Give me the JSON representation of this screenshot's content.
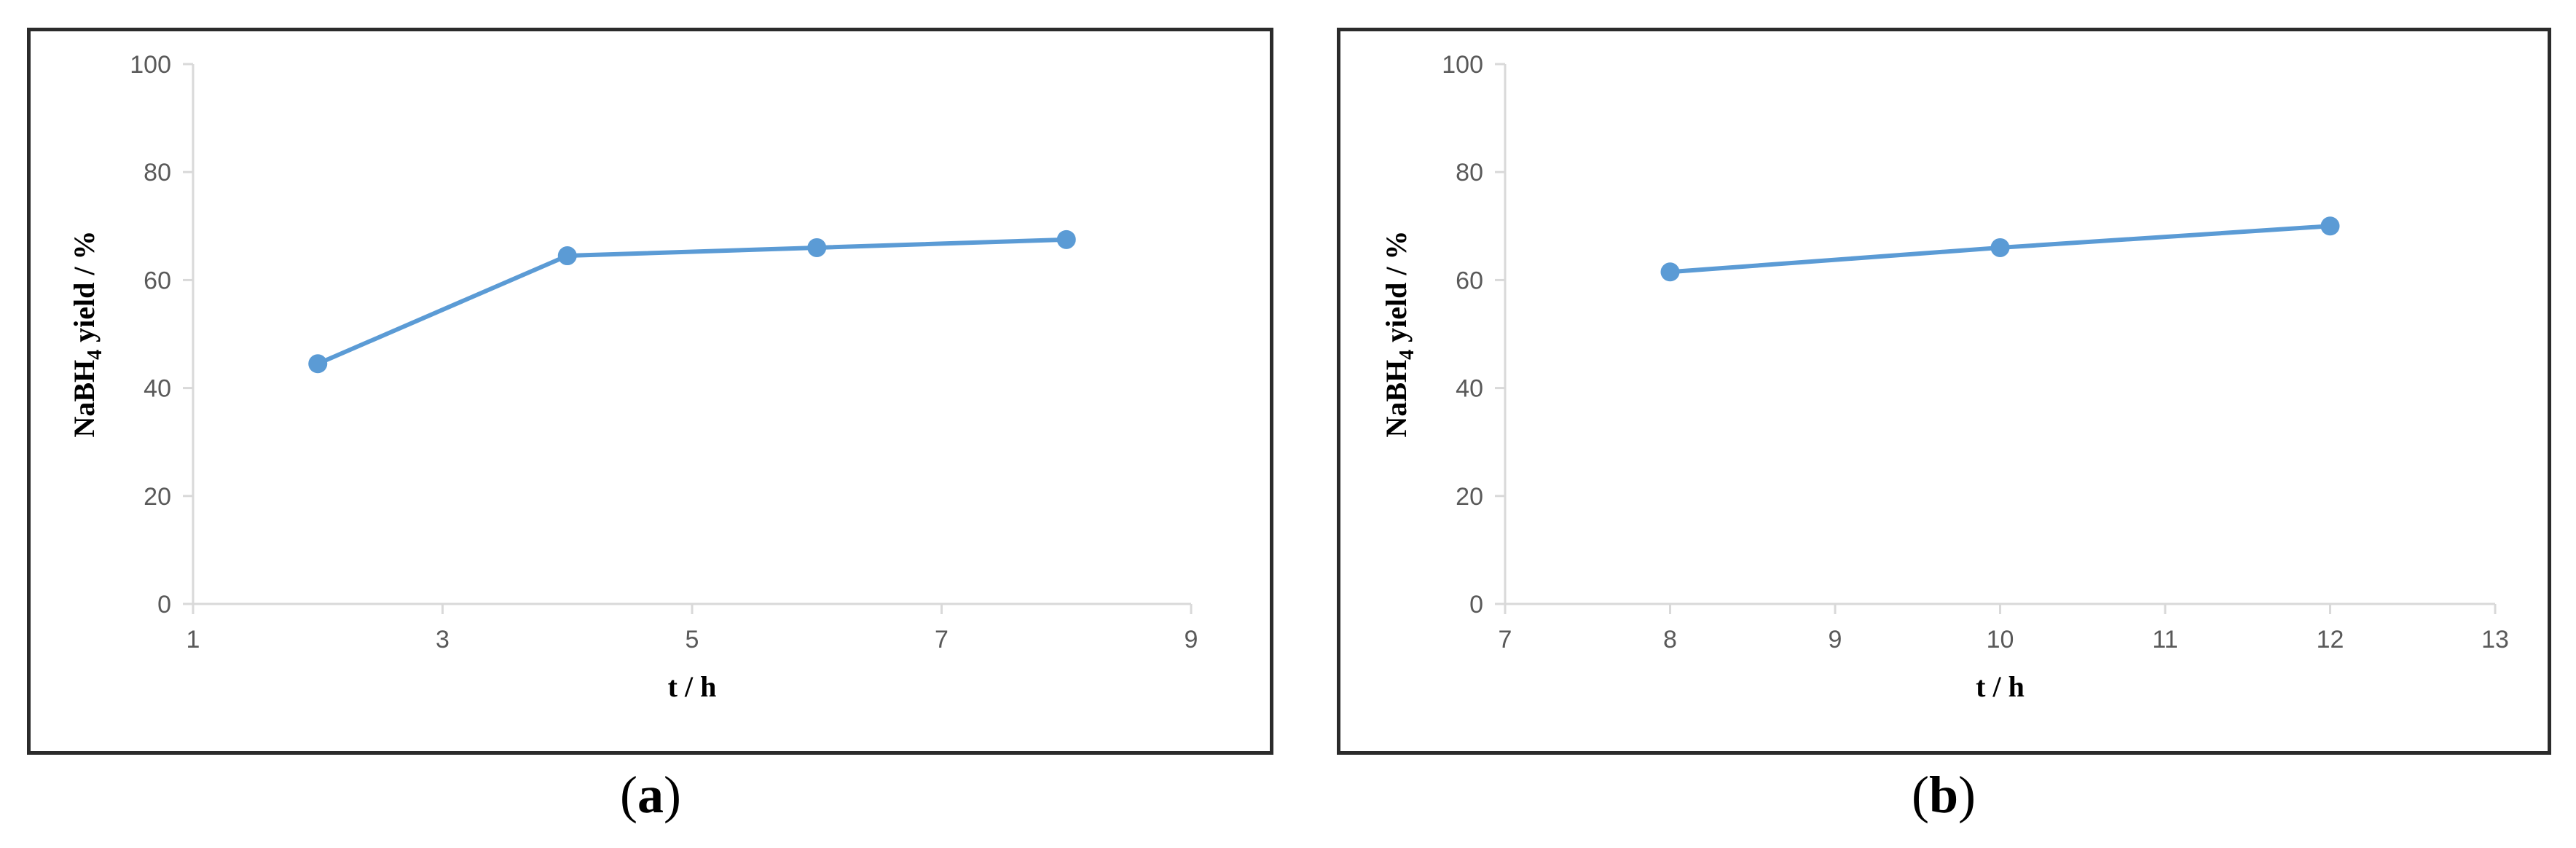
{
  "colors": {
    "series": "#5b9bd5",
    "axis": "#d9d9d9",
    "frame": "#2b2b2b"
  },
  "chart_data": [
    {
      "type": "line",
      "panel": "a",
      "panel_label": "a",
      "xlabel": "t / h",
      "ylabel_main": "NaBH",
      "ylabel_sub": "4",
      "ylabel_rest": " yield / %",
      "xlim": [
        1,
        9
      ],
      "ylim": [
        0,
        100
      ],
      "xticks": [
        "1",
        "3",
        "5",
        "7",
        "9"
      ],
      "yticks": [
        "0",
        "20",
        "40",
        "60",
        "80",
        "100"
      ],
      "grid": false,
      "series": [
        {
          "x": [
            2,
            4,
            6,
            8
          ],
          "y": [
            44.5,
            64.5,
            66,
            67.5
          ]
        }
      ]
    },
    {
      "type": "line",
      "panel": "b",
      "panel_label": "b",
      "xlabel": "t / h",
      "ylabel_main": "NaBH",
      "ylabel_sub": "4",
      "ylabel_rest": " yield / %",
      "xlim": [
        7,
        13
      ],
      "ylim": [
        0,
        100
      ],
      "xticks": [
        "7",
        "8",
        "9",
        "10",
        "11",
        "12",
        "13"
      ],
      "yticks": [
        "0",
        "20",
        "40",
        "60",
        "80",
        "100"
      ],
      "grid": false,
      "series": [
        {
          "x": [
            8,
            10,
            12
          ],
          "y": [
            61.5,
            66,
            70
          ]
        }
      ]
    }
  ]
}
